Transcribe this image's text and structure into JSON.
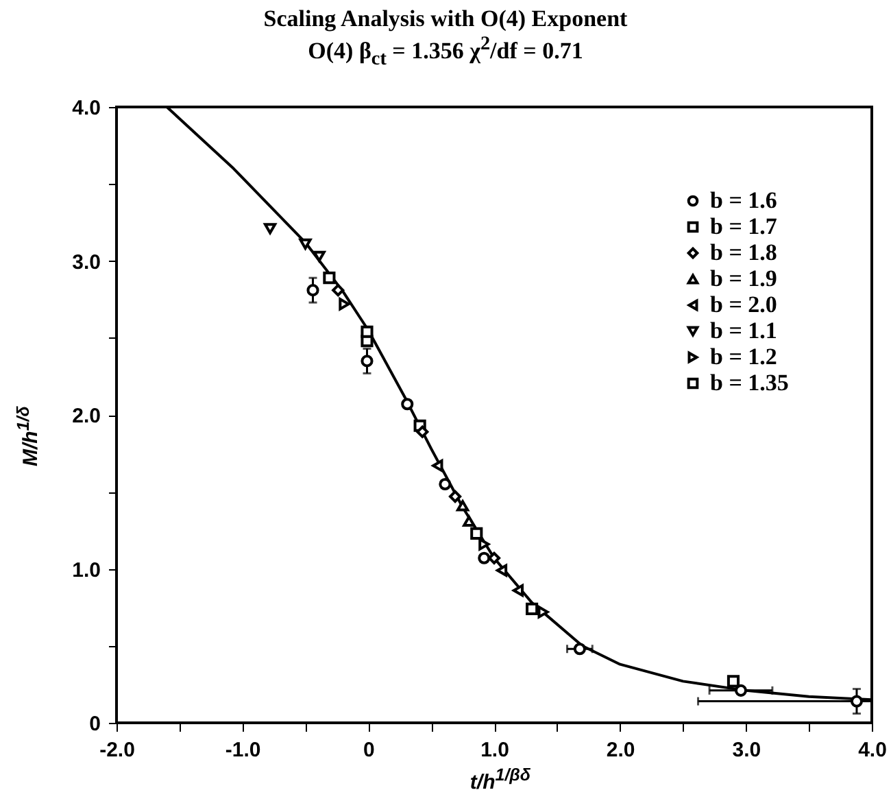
{
  "chart_data": {
    "type": "scatter",
    "title": "Scaling Analysis with O(4) Exponent",
    "subtitle": "O(4) β$_{ct}$ = 1.356 χ$^{2}$/df = 0.71",
    "xlabel": "t/h$^{1/βδ}$",
    "ylabel": "M/h$^{1/δ}$",
    "xlim": [
      -2.0,
      4.0
    ],
    "ylim": [
      0,
      4.0
    ],
    "xticks": [
      {
        "value": -2,
        "label": "-2.0"
      },
      {
        "value": -1.5,
        "label": null
      },
      {
        "value": -1,
        "label": "-1.0"
      },
      {
        "value": -0.5,
        "label": null
      },
      0,
      {
        "value": 0.5,
        "label": null
      },
      {
        "value": 1,
        "label": "1.0"
      },
      {
        "value": 1.5,
        "label": null
      },
      {
        "value": 2,
        "label": "2.0"
      },
      {
        "value": 2.5,
        "label": null
      },
      {
        "value": 3,
        "label": "3.0"
      },
      {
        "value": 3.5,
        "label": null
      },
      {
        "value": 4,
        "label": "4.0"
      }
    ],
    "yticks": [
      0,
      {
        "value": 0.5,
        "label": null
      },
      {
        "value": 1,
        "label": "1.0"
      },
      {
        "value": 1.5,
        "label": null
      },
      {
        "value": 2,
        "label": "2.0"
      },
      {
        "value": 2.5,
        "label": null
      },
      {
        "value": 3,
        "label": "3.0"
      },
      {
        "value": 3.5,
        "label": null
      },
      {
        "value": 4,
        "label": "4.0"
      }
    ],
    "grid": false,
    "legend": "top right",
    "series": [
      {
        "name": "b = 1.6",
        "color": "#000000",
        "marker": "circle",
        "x": [
          -0.44,
          -0.01,
          0.31,
          0.61,
          0.92,
          1.68,
          2.96,
          3.88
        ],
        "values": [
          2.81,
          2.35,
          2.07,
          1.55,
          1.07,
          0.48,
          0.21,
          0.14
        ],
        "errors": [
          0.08,
          0.08,
          null,
          null,
          null,
          null,
          null,
          0.08
        ],
        "xerrors": [
          null,
          null,
          null,
          null,
          null,
          0.1,
          0.25,
          [
            2.62,
            4.0
          ]
        ]
      },
      {
        "name": "b = 1.7",
        "color": "#000000",
        "marker": "square",
        "x": [
          -0.01,
          0.41,
          0.86
        ],
        "values": [
          2.48,
          1.93,
          1.23
        ]
      },
      {
        "name": "b = 1.8",
        "color": "#000000",
        "marker": "diamond",
        "x": [
          -0.24,
          0.43,
          0.69,
          1.0
        ],
        "values": [
          2.81,
          1.89,
          1.47,
          1.07
        ]
      },
      {
        "name": "b = 1.9",
        "color": "#000000",
        "marker": "triangle-up",
        "x": [
          0.75,
          0.8
        ],
        "values": [
          1.41,
          1.31
        ]
      },
      {
        "name": "b = 2.0",
        "color": "#000000",
        "marker": "triangle-left",
        "x": [
          0.55,
          1.06,
          1.19
        ],
        "values": [
          1.67,
          0.99,
          0.86
        ]
      },
      {
        "name": "b = 1.1",
        "color": "#000000",
        "marker": "triangle-down",
        "x": [
          -0.78,
          -0.5,
          -0.39
        ],
        "values": [
          3.21,
          3.11,
          3.03
        ]
      },
      {
        "name": "b = 1.2",
        "color": "#000000",
        "marker": "triangle-right",
        "x": [
          -0.19,
          0.92,
          1.39
        ],
        "values": [
          2.72,
          1.16,
          0.72
        ]
      },
      {
        "name": "b = 1.35",
        "color": "#000000",
        "marker": "square",
        "x": [
          -0.31,
          -0.01,
          1.3,
          2.9
        ],
        "values": [
          2.89,
          2.54,
          0.74,
          0.27
        ]
      },
      {
        "type": "line",
        "color": "#000000",
        "x": [
          -1.6,
          -1.07,
          -0.5,
          -0.2,
          0,
          0.3,
          0.5,
          0.75,
          1.0,
          1.3,
          1.7,
          2.0,
          2.5,
          3.0,
          3.5,
          4.0
        ],
        "values": [
          4.0,
          3.6,
          3.12,
          2.8,
          2.55,
          2.1,
          1.78,
          1.4,
          1.07,
          0.78,
          0.5,
          0.38,
          0.27,
          0.21,
          0.17,
          0.15
        ]
      }
    ]
  }
}
